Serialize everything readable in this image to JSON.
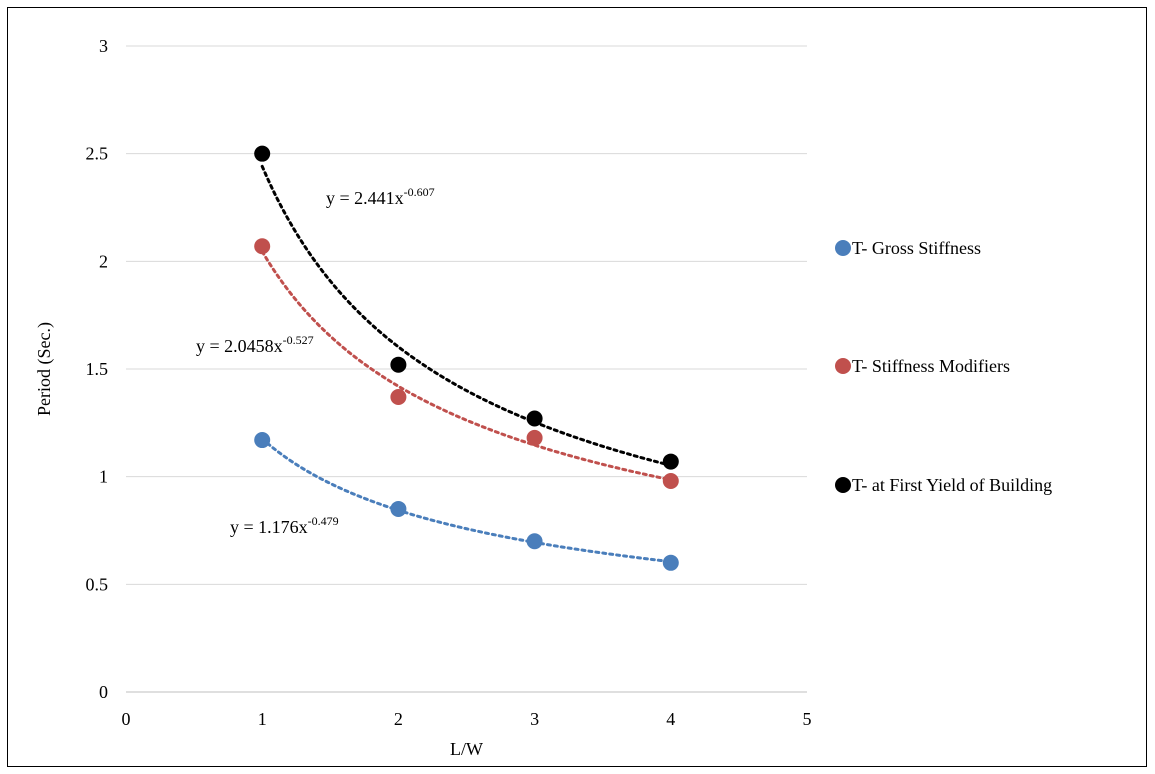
{
  "chart_data": {
    "type": "scatter",
    "title": "",
    "xlabel": "L/W",
    "ylabel": "Period (Sec.)",
    "xlim": [
      0,
      5
    ],
    "ylim": [
      0,
      3
    ],
    "x_ticks": [
      "0",
      "1",
      "2",
      "3",
      "4",
      "5"
    ],
    "y_ticks": [
      "0",
      "0.5",
      "1",
      "1.5",
      "2",
      "2.5",
      "3"
    ],
    "grid": "horizontal",
    "legend_position": "right",
    "x": [
      1,
      2,
      3,
      4
    ],
    "series": [
      {
        "name": "T- Gross Stiffness",
        "color": "#4a7ebb",
        "values": [
          1.17,
          0.85,
          0.7,
          0.6
        ],
        "trendline": {
          "type": "power",
          "a": 1.176,
          "b": -0.479,
          "coef": "1.176",
          "exp": "-0.479"
        }
      },
      {
        "name": "T- Stiffness Modifiers",
        "color": "#c0504d",
        "values": [
          2.07,
          1.37,
          1.18,
          0.98
        ],
        "trendline": {
          "type": "power",
          "a": 2.0458,
          "b": -0.527,
          "coef": "2.0458",
          "exp": "-0.527"
        }
      },
      {
        "name": "T- at First Yield of Building",
        "color": "#000000",
        "values": [
          2.5,
          1.52,
          1.27,
          1.07
        ],
        "trendline": {
          "type": "power",
          "a": 2.441,
          "b": -0.607,
          "coef": "2.441",
          "exp": "-0.607"
        }
      }
    ]
  }
}
